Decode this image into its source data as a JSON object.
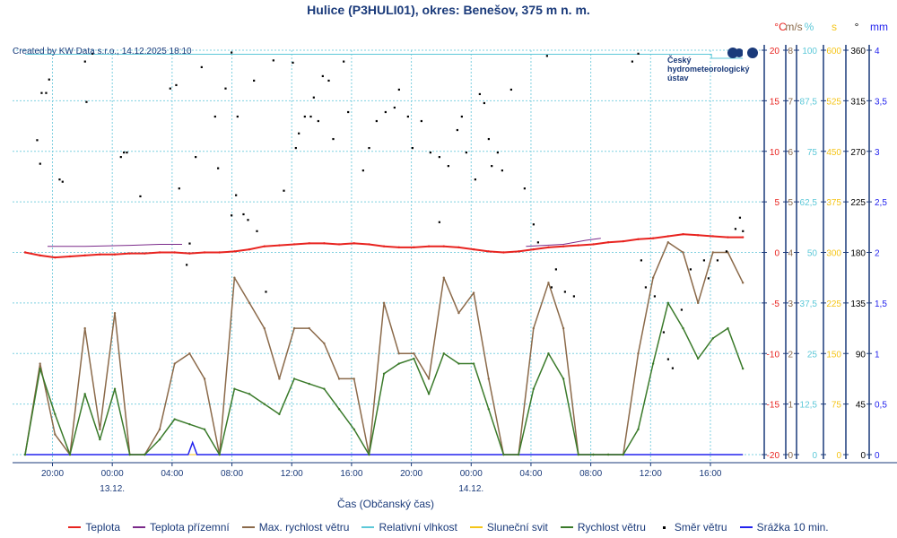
{
  "title": "Hulice (P3HULI01), okres: Benešov, 375 m n. m.",
  "created_by": "Created by KW Data s.r.o., 14.12.2025 18:10",
  "logo": {
    "line1": "Český",
    "line2": "hydrometeorologický",
    "line3": "ústav"
  },
  "chart_data": {
    "type": "line",
    "title": "Hulice (P3HULI01), okres: Benešov, 375 m n. m.",
    "xlabel": "Čas (Občanský čas)",
    "x_unit": "hours since 12.12. 18:10",
    "x_range": [
      0,
      48
    ],
    "x_ticks": [
      {
        "h": 1.83,
        "label": "20:00",
        "date": ""
      },
      {
        "h": 5.83,
        "label": "00:00",
        "date": "13.12."
      },
      {
        "h": 9.83,
        "label": "04:00",
        "date": ""
      },
      {
        "h": 13.83,
        "label": "08:00",
        "date": ""
      },
      {
        "h": 17.83,
        "label": "12:00",
        "date": ""
      },
      {
        "h": 21.83,
        "label": "16:00",
        "date": ""
      },
      {
        "h": 25.83,
        "label": "20:00",
        "date": ""
      },
      {
        "h": 29.83,
        "label": "00:00",
        "date": "14.12."
      },
      {
        "h": 33.83,
        "label": "04:00",
        "date": ""
      },
      {
        "h": 37.83,
        "label": "08:00",
        "date": ""
      },
      {
        "h": 41.83,
        "label": "12:00",
        "date": ""
      },
      {
        "h": 45.83,
        "label": "16:00",
        "date": ""
      }
    ],
    "grid": true,
    "legend_position": "bottom",
    "axes": [
      {
        "id": "temp",
        "unit": "°C",
        "color": "#e8231f",
        "range": [
          -20,
          20
        ],
        "ticks": [
          "20",
          "15",
          "10",
          "5",
          "0",
          "-5",
          "-10",
          "-15",
          "-20"
        ]
      },
      {
        "id": "wind",
        "unit": "m/s",
        "color": "#8b6a4a",
        "range": [
          0,
          8
        ],
        "ticks": [
          "8",
          "7",
          "6",
          "5",
          "4",
          "3",
          "2",
          "1",
          "0"
        ]
      },
      {
        "id": "hum",
        "unit": "%",
        "color": "#5cc8d8",
        "range": [
          0,
          100
        ],
        "ticks": [
          "100",
          "87,5",
          "75",
          "62,5",
          "50",
          "37,5",
          "25",
          "12,5",
          "0"
        ]
      },
      {
        "id": "sun",
        "unit": "s",
        "color": "#f5c518",
        "range": [
          0,
          600
        ],
        "ticks": [
          "600",
          "525",
          "450",
          "375",
          "300",
          "225",
          "150",
          "75",
          "0"
        ]
      },
      {
        "id": "dir",
        "unit": "°",
        "color": "#000000",
        "range": [
          0,
          360
        ],
        "ticks": [
          "360",
          "315",
          "270",
          "225",
          "180",
          "135",
          "90",
          "45",
          "0"
        ]
      },
      {
        "id": "prec",
        "unit": "mm",
        "color": "#2222ee",
        "range": [
          0,
          4
        ],
        "ticks": [
          "4",
          "3,5",
          "3",
          "2,5",
          "2",
          "1,5",
          "1",
          "0,5",
          "0"
        ]
      }
    ],
    "series": [
      {
        "name": "Teplota",
        "axis": "temp",
        "color": "#e8231f",
        "kind": "line",
        "width": 2,
        "values": [
          0,
          -0.3,
          -0.5,
          -0.4,
          -0.3,
          -0.2,
          -0.2,
          -0.1,
          -0.1,
          0,
          0,
          -0.1,
          0,
          0,
          0.1,
          0.3,
          0.6,
          0.7,
          0.8,
          0.9,
          0.9,
          0.8,
          0.9,
          0.8,
          0.6,
          0.5,
          0.5,
          0.6,
          0.6,
          0.5,
          0.3,
          0.1,
          0,
          0.1,
          0.3,
          0.5,
          0.6,
          0.7,
          0.8,
          1.0,
          1.1,
          1.3,
          1.4,
          1.6,
          1.8,
          1.7,
          1.6,
          1.5,
          1.5
        ]
      },
      {
        "name": "Teplota přízemní",
        "axis": "temp",
        "color": "#7b2a8a",
        "kind": "segments",
        "width": 1,
        "segments": [
          [
            [
              1.5,
              0.6
            ],
            [
              4,
              0.6
            ],
            [
              7,
              0.7
            ],
            [
              9,
              0.8
            ],
            [
              10.5,
              0.8
            ]
          ],
          [
            [
              33.5,
              0.6
            ],
            [
              36,
              0.8
            ],
            [
              37.5,
              1.2
            ],
            [
              38.5,
              1.4
            ]
          ]
        ]
      },
      {
        "name": "Max. rychlost větru",
        "axis": "wind",
        "color": "#8b6a4a",
        "kind": "line",
        "width": 1.5,
        "values": [
          0,
          1.8,
          0.4,
          0,
          2.5,
          0.5,
          2.8,
          0,
          0,
          0.5,
          1.8,
          2.0,
          1.5,
          0,
          3.5,
          3.0,
          2.5,
          1.5,
          2.5,
          2.5,
          2.2,
          1.5,
          1.5,
          0,
          3.0,
          2.0,
          2.0,
          1.5,
          3.5,
          2.8,
          3.2,
          1.5,
          0,
          0,
          2.5,
          3.4,
          2.5,
          0,
          0,
          0,
          0,
          2.0,
          3.5,
          4.2,
          4.0,
          3.0,
          4.0,
          4.0,
          3.4
        ]
      },
      {
        "name": "Relativní vlhkost",
        "axis": "hum",
        "color": "#5cc8d8",
        "kind": "segments",
        "width": 1,
        "segments": [
          [
            [
              0,
              99
            ],
            [
              45.9,
              99
            ],
            [
              45.9,
              98
            ],
            [
              48,
              98
            ]
          ]
        ]
      },
      {
        "name": "Sluneční svit",
        "axis": "sun",
        "color": "#f5c518",
        "kind": "segments",
        "width": 1,
        "segments": [
          [
            [
              0,
              0
            ],
            [
              48,
              0
            ]
          ]
        ]
      },
      {
        "name": "Rychlost větru",
        "axis": "wind",
        "color": "#3a7a2a",
        "kind": "line",
        "width": 1.5,
        "values": [
          0,
          1.7,
          0.8,
          0,
          1.2,
          0.3,
          1.3,
          0,
          0,
          0.3,
          0.7,
          0.6,
          0.5,
          0,
          1.3,
          1.2,
          1.0,
          0.8,
          1.5,
          1.4,
          1.3,
          0.9,
          0.5,
          0,
          1.6,
          1.8,
          1.9,
          1.2,
          2.0,
          1.8,
          1.8,
          0.9,
          0,
          0,
          1.3,
          2.0,
          1.5,
          0,
          0,
          0,
          0,
          0.5,
          1.8,
          3.0,
          2.5,
          1.9,
          2.3,
          2.5,
          1.7
        ]
      },
      {
        "name": "Směr větru",
        "axis": "dir",
        "color": "#000000",
        "kind": "dots",
        "points": [
          [
            0.8,
            280
          ],
          [
            1.0,
            259
          ],
          [
            1.1,
            322
          ],
          [
            1.4,
            322
          ],
          [
            1.6,
            334
          ],
          [
            2.3,
            245
          ],
          [
            2.5,
            243
          ],
          [
            4.0,
            350
          ],
          [
            4.1,
            314
          ],
          [
            4.5,
            357
          ],
          [
            6.4,
            265
          ],
          [
            6.6,
            269
          ],
          [
            6.8,
            269
          ],
          [
            7.7,
            230
          ],
          [
            9.7,
            326
          ],
          [
            10.1,
            329
          ],
          [
            10.3,
            237
          ],
          [
            11.0,
            188
          ],
          [
            10.8,
            169
          ],
          [
            11.4,
            265
          ],
          [
            11.8,
            345
          ],
          [
            12.7,
            301
          ],
          [
            12.9,
            255
          ],
          [
            13.4,
            326
          ],
          [
            13.8,
            358
          ],
          [
            14.1,
            231
          ],
          [
            13.8,
            213
          ],
          [
            14.6,
            214
          ],
          [
            14.9,
            209
          ],
          [
            14.2,
            301
          ],
          [
            15.3,
            333
          ],
          [
            15.5,
            199
          ],
          [
            16.1,
            145
          ],
          [
            16.6,
            351
          ],
          [
            17.3,
            235
          ],
          [
            17.9,
            349
          ],
          [
            18.1,
            273
          ],
          [
            18.3,
            286
          ],
          [
            18.7,
            301
          ],
          [
            19.1,
            301
          ],
          [
            19.3,
            318
          ],
          [
            19.6,
            297
          ],
          [
            19.9,
            337
          ],
          [
            20.3,
            333
          ],
          [
            20.6,
            281
          ],
          [
            21.3,
            350
          ],
          [
            21.6,
            305
          ],
          [
            22.6,
            253
          ],
          [
            23.0,
            273
          ],
          [
            23.5,
            297
          ],
          [
            24.1,
            305
          ],
          [
            24.7,
            309
          ],
          [
            25.0,
            325
          ],
          [
            25.6,
            301
          ],
          [
            25.9,
            273
          ],
          [
            26.5,
            297
          ],
          [
            27.1,
            269
          ],
          [
            27.7,
            265
          ],
          [
            27.7,
            207
          ],
          [
            28.3,
            257
          ],
          [
            28.9,
            289
          ],
          [
            29.2,
            301
          ],
          [
            29.5,
            269
          ],
          [
            30.1,
            245
          ],
          [
            30.4,
            321
          ],
          [
            30.7,
            313
          ],
          [
            31.0,
            281
          ],
          [
            31.2,
            257
          ],
          [
            31.6,
            269
          ],
          [
            31.9,
            253
          ],
          [
            32.5,
            325
          ],
          [
            33.4,
            237
          ],
          [
            34.0,
            205
          ],
          [
            34.3,
            189
          ],
          [
            34.9,
            355
          ],
          [
            35.2,
            149
          ],
          [
            35.5,
            165
          ],
          [
            36.1,
            145
          ],
          [
            36.7,
            141
          ],
          [
            40.6,
            350
          ],
          [
            41.0,
            357
          ],
          [
            41.2,
            173
          ],
          [
            41.5,
            149
          ],
          [
            42.1,
            141
          ],
          [
            42.7,
            109
          ],
          [
            43.0,
            85
          ],
          [
            43.3,
            77
          ],
          [
            43.9,
            129
          ],
          [
            44.5,
            165
          ],
          [
            45.4,
            173
          ],
          [
            45.7,
            157
          ],
          [
            46.3,
            173
          ],
          [
            46.9,
            181
          ],
          [
            47.5,
            201
          ],
          [
            47.8,
            211
          ],
          [
            48.0,
            199
          ]
        ]
      },
      {
        "name": "Srážka 10 min.",
        "axis": "prec",
        "color": "#2222ee",
        "kind": "segments",
        "width": 1.5,
        "segments": [
          [
            [
              0,
              0
            ],
            [
              10.9,
              0
            ],
            [
              11.2,
              0.12
            ],
            [
              11.5,
              0
            ],
            [
              48,
              0
            ]
          ]
        ]
      }
    ]
  }
}
